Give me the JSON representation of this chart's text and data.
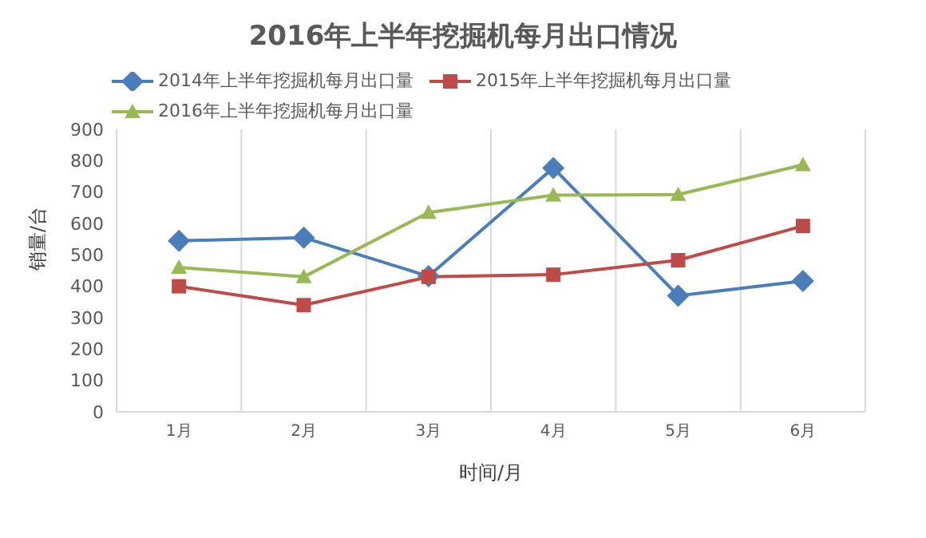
{
  "chart_data": {
    "type": "line",
    "title": "2016年上半年挖掘机每月出口情况",
    "xlabel": "时间/月",
    "ylabel": "销量/台",
    "categories": [
      "1月",
      "2月",
      "3月",
      "4月",
      "5月",
      "6月"
    ],
    "series": [
      {
        "name": "2014年上半年挖掘机每月出口量",
        "color": "#4a7ebb",
        "marker": "diamond",
        "values": [
          545,
          555,
          432,
          777,
          370,
          417
        ]
      },
      {
        "name": "2015年上半年挖掘机每月出口量",
        "color": "#be4b48",
        "marker": "square",
        "values": [
          400,
          340,
          430,
          437,
          483,
          592
        ]
      },
      {
        "name": "2016年上半年挖掘机每月出口量",
        "color": "#98b954",
        "marker": "triangle",
        "values": [
          460,
          430,
          635,
          690,
          692,
          787
        ]
      }
    ],
    "ylim": [
      0,
      900
    ],
    "yticks": [
      0,
      100,
      200,
      300,
      400,
      500,
      600,
      700,
      800,
      900
    ],
    "grid": "x",
    "legend": "top",
    "line_style": "solid"
  }
}
